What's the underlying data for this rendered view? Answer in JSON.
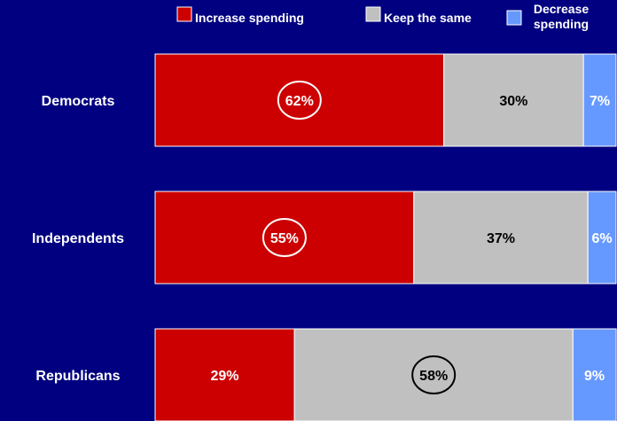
{
  "colors": {
    "background": "#000080",
    "increase": "#CC0000",
    "same": "#C0C0C0",
    "decrease": "#6699FF",
    "circle_on_red": "#FFFFFF",
    "circle_on_gray": "#000000"
  },
  "chart_data": {
    "type": "bar",
    "orientation": "horizontal",
    "stacked": true,
    "categories": [
      "Democrats",
      "Independents",
      "Republicans"
    ],
    "series": [
      {
        "name": "Increase spending",
        "values": [
          62,
          55,
          29
        ]
      },
      {
        "name": "Keep the same",
        "values": [
          30,
          37,
          58
        ]
      },
      {
        "name": "Decrease spending",
        "values": [
          7,
          6,
          9
        ]
      }
    ],
    "data_labels": [
      [
        "62%",
        "30%",
        "7%"
      ],
      [
        "55%",
        "37%",
        "6%"
      ],
      [
        "29%",
        "58%",
        "9%"
      ]
    ],
    "highlighted": [
      {
        "category": "Democrats",
        "series": "Increase spending"
      },
      {
        "category": "Independents",
        "series": "Increase spending"
      },
      {
        "category": "Republicans",
        "series": "Keep the same"
      }
    ],
    "legend": {
      "position": "top",
      "entries": [
        {
          "lines": [
            "Increase spending"
          ]
        },
        {
          "lines": [
            "Keep the same"
          ]
        },
        {
          "lines": [
            "Decrease",
            "spending"
          ]
        }
      ]
    },
    "xlim": [
      0,
      100
    ],
    "grid": false,
    "axes_visible": false
  }
}
